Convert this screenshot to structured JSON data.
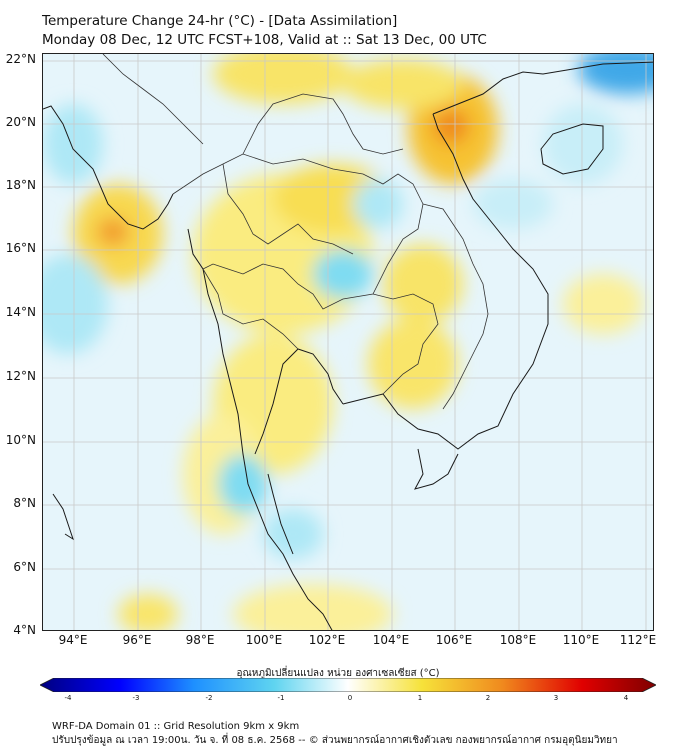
{
  "header": {
    "line1": "Temperature Change 24-hr (°C) - [Data Assimilation]",
    "line2": "Monday 08 Dec, 12 UTC FCST+108, Valid at :: Sat 13 Dec, 00 UTC"
  },
  "axes": {
    "lat_labels": [
      "22°N",
      "20°N",
      "18°N",
      "16°N",
      "14°N",
      "12°N",
      "10°N",
      "8°N",
      "6°N",
      "4°N"
    ],
    "lon_labels": [
      "94°E",
      "96°E",
      "98°E",
      "100°E",
      "102°E",
      "104°E",
      "106°E",
      "108°E",
      "110°E",
      "112°E"
    ]
  },
  "colorbar": {
    "title": "อุณหภูมิเปลี่ยนแปลง หน่วย องศาเซลเซียส (°C)",
    "ticks": [
      "-4",
      "-3",
      "-2",
      "-1",
      "0",
      "1",
      "2",
      "3",
      "4"
    ]
  },
  "footer": {
    "line1": "WRF-DA Domain 01 :: Grid Resolution 9km x 9km",
    "line2": "ปรับปรุงข้อมูล ณ เวลา 19:00น. วัน จ. ที่ 08 ธ.ค. 2568 -- © ส่วนพยากรณ์อากาศเชิงตัวเลข กองพยากรณ์อากาศ กรมอุตุนิยมวิทยา"
  },
  "colors": {
    "cold_extreme": "#00007f",
    "cold": "#1e90ff",
    "cool": "#5fd4f0",
    "neutral": "#ffffff",
    "warm": "#f6e23a",
    "hot": "#f08a1e",
    "hot_extreme": "#7f0000"
  }
}
